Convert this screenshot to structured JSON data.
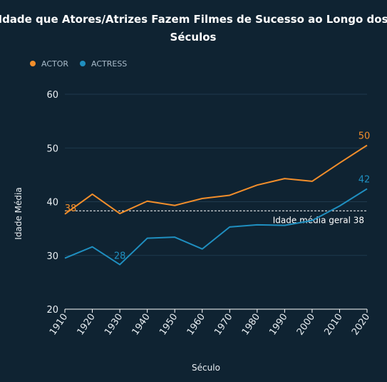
{
  "chart_data": {
    "type": "line",
    "title": "Idade que Atores/Atrizes Fazem Filmes de Sucesso ao Longo dos Séculos",
    "xlabel": "Século",
    "ylabel": "Idade Média",
    "x": [
      1910,
      1920,
      1930,
      1940,
      1950,
      1960,
      1970,
      1980,
      1990,
      2000,
      2010,
      2020
    ],
    "xlim": [
      1910,
      2020
    ],
    "ylim": [
      20,
      60
    ],
    "yticks": [
      20,
      30,
      40,
      50,
      60
    ],
    "grid": true,
    "legend_position": "top-left",
    "series": [
      {
        "name": "ACTOR",
        "color": "#f28e2b",
        "values": [
          37.7,
          41.4,
          37.8,
          40.1,
          39.3,
          40.6,
          41.2,
          43.1,
          44.3,
          43.8,
          47.2,
          50.5
        ]
      },
      {
        "name": "ACTRESS",
        "color": "#1f8fc0",
        "values": [
          29.5,
          31.6,
          28.3,
          33.2,
          33.4,
          31.2,
          35.3,
          35.7,
          35.6,
          36.5,
          39.2,
          42.4
        ]
      }
    ],
    "point_labels": [
      {
        "series": 0,
        "index": 0,
        "text": "38"
      },
      {
        "series": 0,
        "index": 11,
        "text": "50"
      },
      {
        "series": 1,
        "index": 2,
        "text": "28"
      },
      {
        "series": 1,
        "index": 11,
        "text": "42"
      }
    ],
    "reference_line": {
      "value": 38.3,
      "label": "Idade média geral 38",
      "color": "#ffffff"
    }
  }
}
